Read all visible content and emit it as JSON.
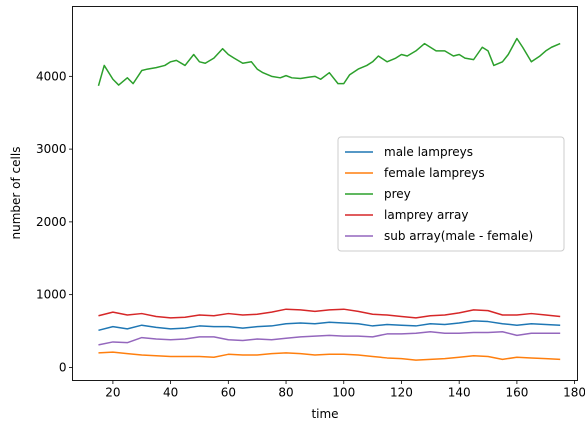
{
  "chart_data": {
    "type": "line",
    "xlabel": "time",
    "ylabel": "number of cells",
    "xlim": [
      6,
      181
    ],
    "ylim": [
      -180,
      4960
    ],
    "xticks": [
      20,
      40,
      60,
      80,
      100,
      120,
      140,
      160,
      180
    ],
    "yticks": [
      0,
      1000,
      2000,
      3000,
      4000
    ],
    "grid": false,
    "legend_position": "center-right",
    "series": [
      {
        "name": "male lampreys",
        "color": "#1f77b4",
        "x": [
          15,
          20,
          25,
          30,
          35,
          40,
          45,
          50,
          55,
          60,
          65,
          70,
          75,
          80,
          85,
          90,
          95,
          100,
          105,
          110,
          115,
          120,
          125,
          130,
          135,
          140,
          145,
          150,
          155,
          160,
          165,
          170,
          175
        ],
        "y": [
          510,
          560,
          530,
          580,
          550,
          530,
          540,
          570,
          560,
          560,
          540,
          560,
          570,
          600,
          610,
          600,
          620,
          610,
          600,
          570,
          590,
          580,
          570,
          600,
          590,
          610,
          640,
          630,
          600,
          580,
          600,
          590,
          580
        ]
      },
      {
        "name": "female lampreys",
        "color": "#ff7f0e",
        "x": [
          15,
          20,
          25,
          30,
          35,
          40,
          45,
          50,
          55,
          60,
          65,
          70,
          75,
          80,
          85,
          90,
          95,
          100,
          105,
          110,
          115,
          120,
          125,
          130,
          135,
          140,
          145,
          150,
          155,
          160,
          165,
          170,
          175
        ],
        "y": [
          200,
          210,
          190,
          170,
          160,
          150,
          150,
          150,
          140,
          180,
          170,
          170,
          190,
          200,
          190,
          170,
          180,
          180,
          170,
          150,
          130,
          120,
          100,
          110,
          120,
          140,
          160,
          150,
          110,
          140,
          130,
          120,
          110
        ]
      },
      {
        "name": "prey",
        "color": "#2ca02c",
        "x": [
          15,
          17,
          20,
          22,
          25,
          27,
          30,
          32,
          35,
          38,
          40,
          42,
          45,
          48,
          50,
          52,
          55,
          58,
          60,
          62,
          65,
          68,
          70,
          72,
          75,
          78,
          80,
          82,
          85,
          88,
          90,
          92,
          95,
          98,
          100,
          102,
          105,
          108,
          110,
          112,
          115,
          118,
          120,
          122,
          125,
          128,
          130,
          132,
          135,
          138,
          140,
          142,
          145,
          148,
          150,
          152,
          155,
          157,
          160,
          162,
          165,
          168,
          170,
          172,
          175
        ],
        "y": [
          3870,
          4150,
          3960,
          3880,
          3980,
          3900,
          4080,
          4100,
          4120,
          4150,
          4200,
          4220,
          4150,
          4300,
          4200,
          4180,
          4250,
          4380,
          4300,
          4250,
          4180,
          4200,
          4100,
          4050,
          4000,
          3980,
          4010,
          3980,
          3970,
          3990,
          4000,
          3960,
          4050,
          3900,
          3900,
          4020,
          4100,
          4150,
          4200,
          4280,
          4200,
          4250,
          4300,
          4280,
          4350,
          4450,
          4400,
          4350,
          4350,
          4280,
          4300,
          4250,
          4230,
          4400,
          4350,
          4150,
          4200,
          4300,
          4520,
          4400,
          4200,
          4280,
          4350,
          4400,
          4450
        ]
      },
      {
        "name": "lamprey array",
        "color": "#d62728",
        "x": [
          15,
          20,
          25,
          30,
          35,
          40,
          45,
          50,
          55,
          60,
          65,
          70,
          75,
          80,
          85,
          90,
          95,
          100,
          105,
          110,
          115,
          120,
          125,
          130,
          135,
          140,
          145,
          150,
          155,
          160,
          165,
          170,
          175
        ],
        "y": [
          710,
          760,
          720,
          740,
          700,
          680,
          690,
          720,
          710,
          740,
          720,
          730,
          760,
          800,
          790,
          770,
          790,
          800,
          770,
          730,
          720,
          700,
          680,
          710,
          720,
          750,
          790,
          780,
          720,
          720,
          740,
          720,
          700
        ]
      },
      {
        "name": "sub array(male - female)",
        "color": "#9467bd",
        "x": [
          15,
          20,
          25,
          30,
          35,
          40,
          45,
          50,
          55,
          60,
          65,
          70,
          75,
          80,
          85,
          90,
          95,
          100,
          105,
          110,
          115,
          120,
          125,
          130,
          135,
          140,
          145,
          150,
          155,
          160,
          165,
          170,
          175
        ],
        "y": [
          310,
          350,
          340,
          410,
          390,
          380,
          390,
          420,
          420,
          380,
          370,
          390,
          380,
          400,
          420,
          430,
          440,
          430,
          430,
          420,
          460,
          460,
          470,
          490,
          470,
          470,
          480,
          480,
          490,
          440,
          470,
          470,
          470
        ]
      }
    ]
  }
}
